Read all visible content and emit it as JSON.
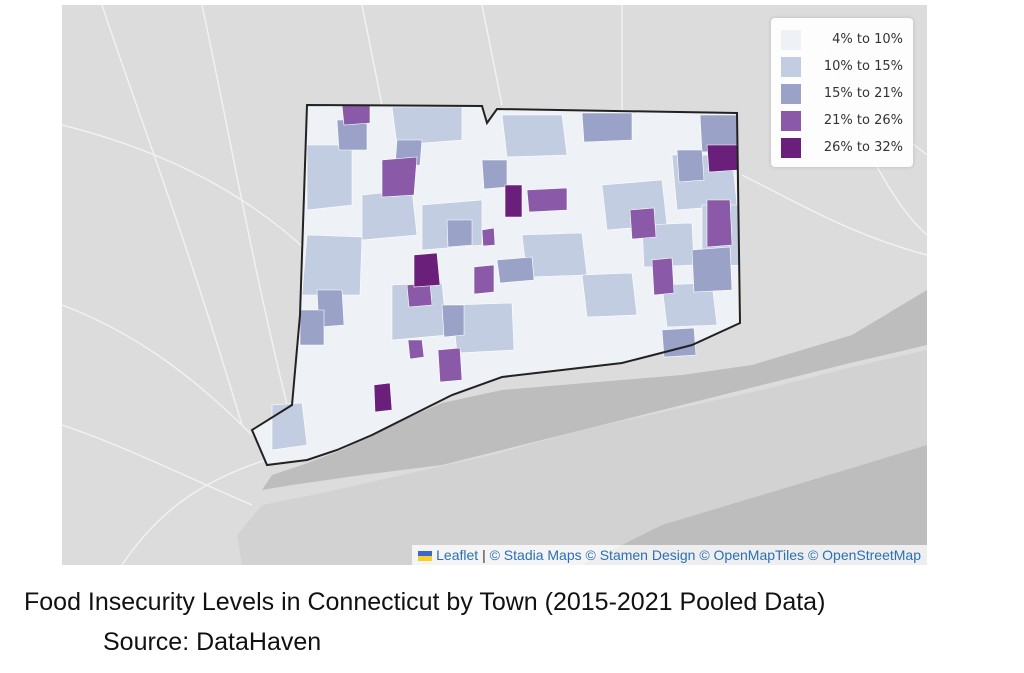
{
  "legend": {
    "items": [
      {
        "label": "4% to 10%",
        "color": "#eef2f6"
      },
      {
        "label": "10% to 15%",
        "color": "#c3cde1"
      },
      {
        "label": "15% to 21%",
        "color": "#9aa2c8"
      },
      {
        "label": "21% to 26%",
        "color": "#8a5aa8"
      },
      {
        "label": "26% to 32%",
        "color": "#6a1f7a"
      }
    ]
  },
  "attribution": {
    "leaflet": "Leaflet",
    "separator": "|",
    "stadia": "© Stadia Maps",
    "stamen": "© Stamen Design",
    "openmaptiles": "© OpenMapTiles",
    "osm": "© OpenStreetMap"
  },
  "caption": {
    "title": "Food Insecurity Levels in Connecticut by Town (2015-2021 Pooled Data)",
    "source": "Source: DataHaven"
  },
  "colors": {
    "land": "#dcdcdc",
    "water": "#bdbdbd",
    "state_border": "#222222"
  }
}
